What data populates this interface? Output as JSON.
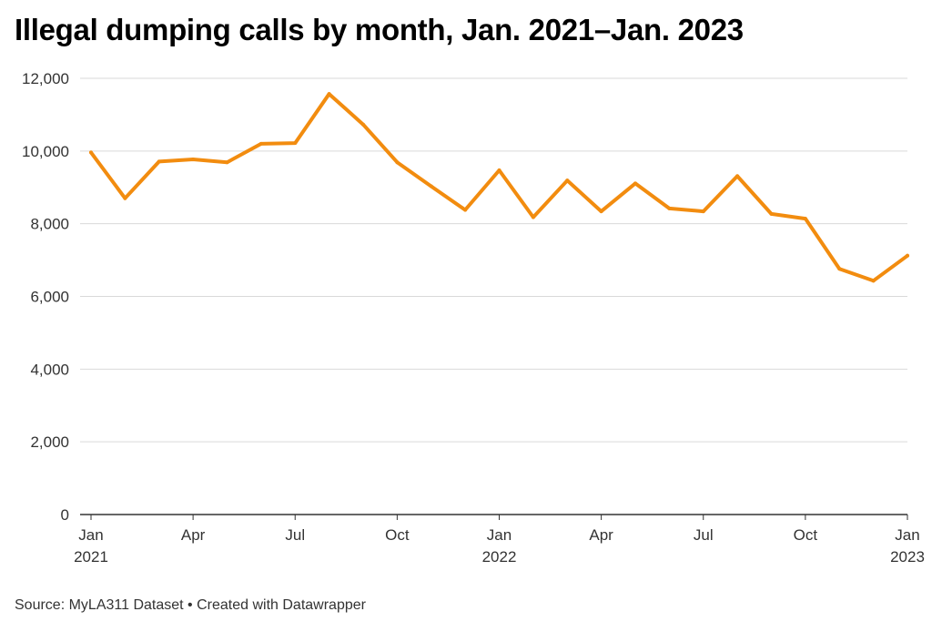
{
  "title": "Illegal dumping calls by month, Jan. 2021–Jan. 2023",
  "footer": {
    "source": "Source: MyLA311 Dataset",
    "separator": "•",
    "credit": "Created with Datawrapper"
  },
  "colors": {
    "line": "#f28c0f",
    "grid": "#d9d9d9",
    "baseline": "#333333",
    "tick_text": "#333333"
  },
  "chart_data": {
    "type": "line",
    "title": "Illegal dumping calls by month, Jan. 2021–Jan. 2023",
    "xlabel": "",
    "ylabel": "",
    "ylim": [
      0,
      12000
    ],
    "y_ticks": [
      0,
      2000,
      4000,
      6000,
      8000,
      10000,
      12000
    ],
    "y_tick_labels": [
      "0",
      "2,000",
      "4,000",
      "6,000",
      "8,000",
      "10,000",
      "12,000"
    ],
    "x": [
      "2021-01",
      "2021-02",
      "2021-03",
      "2021-04",
      "2021-05",
      "2021-06",
      "2021-07",
      "2021-08",
      "2021-09",
      "2021-10",
      "2021-11",
      "2021-12",
      "2022-01",
      "2022-02",
      "2022-03",
      "2022-04",
      "2022-05",
      "2022-06",
      "2022-07",
      "2022-08",
      "2022-09",
      "2022-10",
      "2022-11",
      "2022-12",
      "2023-01"
    ],
    "x_ticks": [
      {
        "x": "2021-01",
        "label": "Jan",
        "year": "2021"
      },
      {
        "x": "2021-04",
        "label": "Apr",
        "year": ""
      },
      {
        "x": "2021-07",
        "label": "Jul",
        "year": ""
      },
      {
        "x": "2021-10",
        "label": "Oct",
        "year": ""
      },
      {
        "x": "2022-01",
        "label": "Jan",
        "year": "2022"
      },
      {
        "x": "2022-04",
        "label": "Apr",
        "year": ""
      },
      {
        "x": "2022-07",
        "label": "Jul",
        "year": ""
      },
      {
        "x": "2022-10",
        "label": "Oct",
        "year": ""
      },
      {
        "x": "2023-01",
        "label": "Jan",
        "year": "2023"
      }
    ],
    "series": [
      {
        "values": [
          9960,
          8700,
          9710,
          9770,
          9690,
          10200,
          10220,
          11570,
          10730,
          9690,
          9030,
          8380,
          9470,
          8180,
          9190,
          8340,
          9110,
          8420,
          8340,
          9310,
          8270,
          8140,
          6760,
          6430,
          7120
        ]
      }
    ],
    "grid": true,
    "legend": "none"
  }
}
